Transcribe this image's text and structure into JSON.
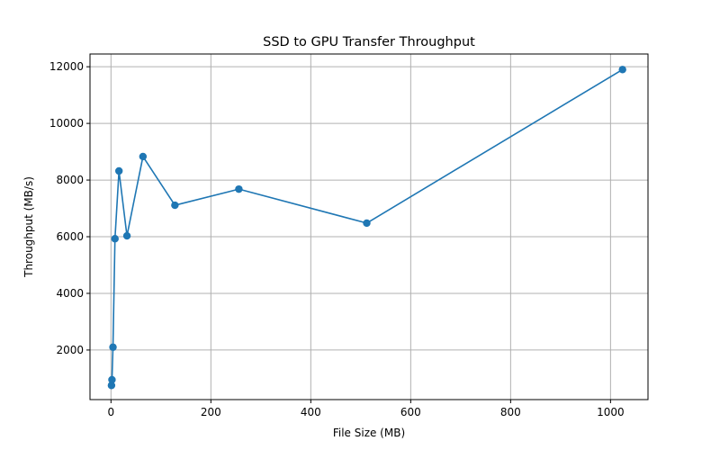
{
  "chart_data": {
    "type": "line",
    "title": "SSD to GPU Transfer Throughput",
    "xlabel": "File Size (MB)",
    "ylabel": "Throughput (MB/s)",
    "xlim": [
      -42,
      1075
    ],
    "ylim": [
      250,
      12450
    ],
    "xticks": [
      0,
      200,
      400,
      600,
      800,
      1000
    ],
    "yticks": [
      2000,
      4000,
      6000,
      8000,
      10000,
      12000
    ],
    "grid": true,
    "marker": "circle",
    "series": [
      {
        "color": "#1f77b4",
        "x": [
          1,
          2,
          4,
          8,
          16,
          32,
          64,
          128,
          256,
          512,
          1024
        ],
        "y": [
          750,
          950,
          2100,
          5930,
          8320,
          6030,
          8830,
          7110,
          7680,
          6480,
          11900
        ]
      }
    ]
  }
}
